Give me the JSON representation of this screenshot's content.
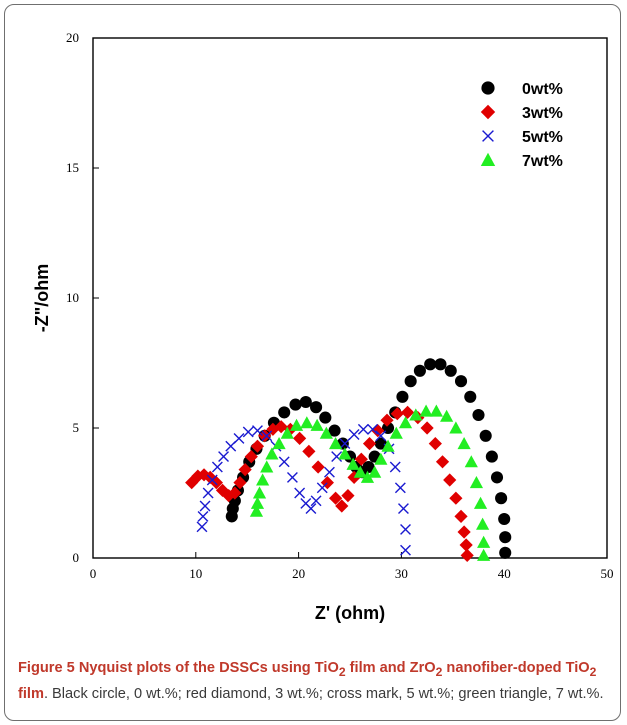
{
  "chart_data": {
    "type": "scatter",
    "title": "",
    "xlabel": "Z' (ohm)",
    "ylabel": "-Z\"/ohm",
    "xlim": [
      0,
      50
    ],
    "ylim": [
      0,
      20
    ],
    "x_ticks": [
      "0",
      "10",
      "20",
      "30",
      "40",
      "50"
    ],
    "y_ticks": [
      "0",
      "5",
      "10",
      "15",
      "20"
    ],
    "grid": false,
    "legend_position": "top-right",
    "series": [
      {
        "name": "0wt%",
        "marker": "circle",
        "color": "#000000",
        "points": [
          [
            13.5,
            1.6
          ],
          [
            13.6,
            1.9
          ],
          [
            13.8,
            2.2
          ],
          [
            14.1,
            2.6
          ],
          [
            14.6,
            3.1
          ],
          [
            15.2,
            3.7
          ],
          [
            15.9,
            4.2
          ],
          [
            16.7,
            4.7
          ],
          [
            17.6,
            5.2
          ],
          [
            18.6,
            5.6
          ],
          [
            19.7,
            5.9
          ],
          [
            20.7,
            6.0
          ],
          [
            21.7,
            5.8
          ],
          [
            22.6,
            5.4
          ],
          [
            23.5,
            4.9
          ],
          [
            24.3,
            4.4
          ],
          [
            25.0,
            3.9
          ],
          [
            25.6,
            3.5
          ],
          [
            26.2,
            3.3
          ],
          [
            26.8,
            3.5
          ],
          [
            27.4,
            3.9
          ],
          [
            28.0,
            4.4
          ],
          [
            28.7,
            5.0
          ],
          [
            29.4,
            5.6
          ],
          [
            30.1,
            6.2
          ],
          [
            30.9,
            6.8
          ],
          [
            31.8,
            7.2
          ],
          [
            32.8,
            7.45
          ],
          [
            33.8,
            7.45
          ],
          [
            34.8,
            7.2
          ],
          [
            35.8,
            6.8
          ],
          [
            36.7,
            6.2
          ],
          [
            37.5,
            5.5
          ],
          [
            38.2,
            4.7
          ],
          [
            38.8,
            3.9
          ],
          [
            39.3,
            3.1
          ],
          [
            39.7,
            2.3
          ],
          [
            40.0,
            1.5
          ],
          [
            40.1,
            0.8
          ],
          [
            40.1,
            0.2
          ]
        ]
      },
      {
        "name": "3wt%",
        "marker": "diamond",
        "color": "#e00000",
        "points": [
          [
            9.6,
            2.9
          ],
          [
            10.2,
            3.15
          ],
          [
            10.8,
            3.2
          ],
          [
            11.4,
            3.1
          ],
          [
            12.0,
            2.9
          ],
          [
            12.6,
            2.6
          ],
          [
            13.2,
            2.4
          ],
          [
            13.8,
            2.5
          ],
          [
            14.3,
            2.9
          ],
          [
            14.8,
            3.4
          ],
          [
            15.4,
            3.9
          ],
          [
            16.0,
            4.3
          ],
          [
            16.7,
            4.7
          ],
          [
            17.5,
            4.95
          ],
          [
            18.3,
            5.05
          ],
          [
            19.2,
            4.95
          ],
          [
            20.1,
            4.6
          ],
          [
            21.0,
            4.1
          ],
          [
            21.9,
            3.5
          ],
          [
            22.8,
            2.9
          ],
          [
            23.6,
            2.3
          ],
          [
            24.2,
            2.0
          ],
          [
            24.8,
            2.4
          ],
          [
            25.4,
            3.1
          ],
          [
            26.1,
            3.8
          ],
          [
            26.9,
            4.4
          ],
          [
            27.7,
            4.9
          ],
          [
            28.6,
            5.3
          ],
          [
            29.6,
            5.55
          ],
          [
            30.6,
            5.6
          ],
          [
            31.6,
            5.4
          ],
          [
            32.5,
            5.0
          ],
          [
            33.3,
            4.4
          ],
          [
            34.0,
            3.7
          ],
          [
            34.7,
            3.0
          ],
          [
            35.3,
            2.3
          ],
          [
            35.8,
            1.6
          ],
          [
            36.1,
            1.0
          ],
          [
            36.3,
            0.5
          ],
          [
            36.4,
            0.1
          ]
        ]
      },
      {
        "name": "5wt%",
        "marker": "cross",
        "color": "#1a1ad0",
        "points": [
          [
            10.6,
            1.2
          ],
          [
            10.7,
            1.6
          ],
          [
            10.9,
            2.0
          ],
          [
            11.2,
            2.5
          ],
          [
            11.6,
            3.0
          ],
          [
            12.1,
            3.5
          ],
          [
            12.7,
            3.9
          ],
          [
            13.4,
            4.3
          ],
          [
            14.2,
            4.6
          ],
          [
            15.1,
            4.85
          ],
          [
            16.0,
            4.9
          ],
          [
            16.9,
            4.7
          ],
          [
            17.8,
            4.3
          ],
          [
            18.6,
            3.7
          ],
          [
            19.4,
            3.1
          ],
          [
            20.1,
            2.5
          ],
          [
            20.7,
            2.1
          ],
          [
            21.2,
            1.9
          ],
          [
            21.7,
            2.2
          ],
          [
            22.3,
            2.7
          ],
          [
            23.0,
            3.3
          ],
          [
            23.7,
            3.9
          ],
          [
            24.5,
            4.4
          ],
          [
            25.4,
            4.75
          ],
          [
            26.3,
            4.95
          ],
          [
            27.2,
            4.95
          ],
          [
            28.0,
            4.7
          ],
          [
            28.8,
            4.2
          ],
          [
            29.4,
            3.5
          ],
          [
            29.9,
            2.7
          ],
          [
            30.2,
            1.9
          ],
          [
            30.4,
            1.1
          ],
          [
            30.4,
            0.3
          ]
        ]
      },
      {
        "name": "7wt%",
        "marker": "triangle",
        "color": "#22ee22",
        "points": [
          [
            15.9,
            1.8
          ],
          [
            16.0,
            2.1
          ],
          [
            16.2,
            2.5
          ],
          [
            16.5,
            3.0
          ],
          [
            16.9,
            3.5
          ],
          [
            17.4,
            4.0
          ],
          [
            18.1,
            4.4
          ],
          [
            18.9,
            4.8
          ],
          [
            19.8,
            5.1
          ],
          [
            20.8,
            5.2
          ],
          [
            21.8,
            5.1
          ],
          [
            22.7,
            4.8
          ],
          [
            23.6,
            4.4
          ],
          [
            24.5,
            4.0
          ],
          [
            25.3,
            3.6
          ],
          [
            26.0,
            3.3
          ],
          [
            26.7,
            3.1
          ],
          [
            27.4,
            3.3
          ],
          [
            28.0,
            3.8
          ],
          [
            28.7,
            4.3
          ],
          [
            29.5,
            4.8
          ],
          [
            30.4,
            5.2
          ],
          [
            31.4,
            5.5
          ],
          [
            32.4,
            5.65
          ],
          [
            33.4,
            5.65
          ],
          [
            34.4,
            5.45
          ],
          [
            35.3,
            5.0
          ],
          [
            36.1,
            4.4
          ],
          [
            36.8,
            3.7
          ],
          [
            37.3,
            2.9
          ],
          [
            37.7,
            2.1
          ],
          [
            37.9,
            1.3
          ],
          [
            38.0,
            0.6
          ],
          [
            38.0,
            0.1
          ]
        ]
      }
    ]
  },
  "caption": {
    "figure_label": "Figure 5",
    "title_part1": " Nyquist plots of the DSSCs using TiO",
    "sub1": "2",
    "title_part2": " film and ZrO",
    "sub2": "2",
    "title_part3": " nanofiber-doped TiO",
    "sub3": "2",
    "title_part4": " film",
    "body": ". Black circle, 0 wt.%; red diamond, 3 wt.%; cross mark, 5 wt.%; green triangle, 7 wt.%."
  }
}
